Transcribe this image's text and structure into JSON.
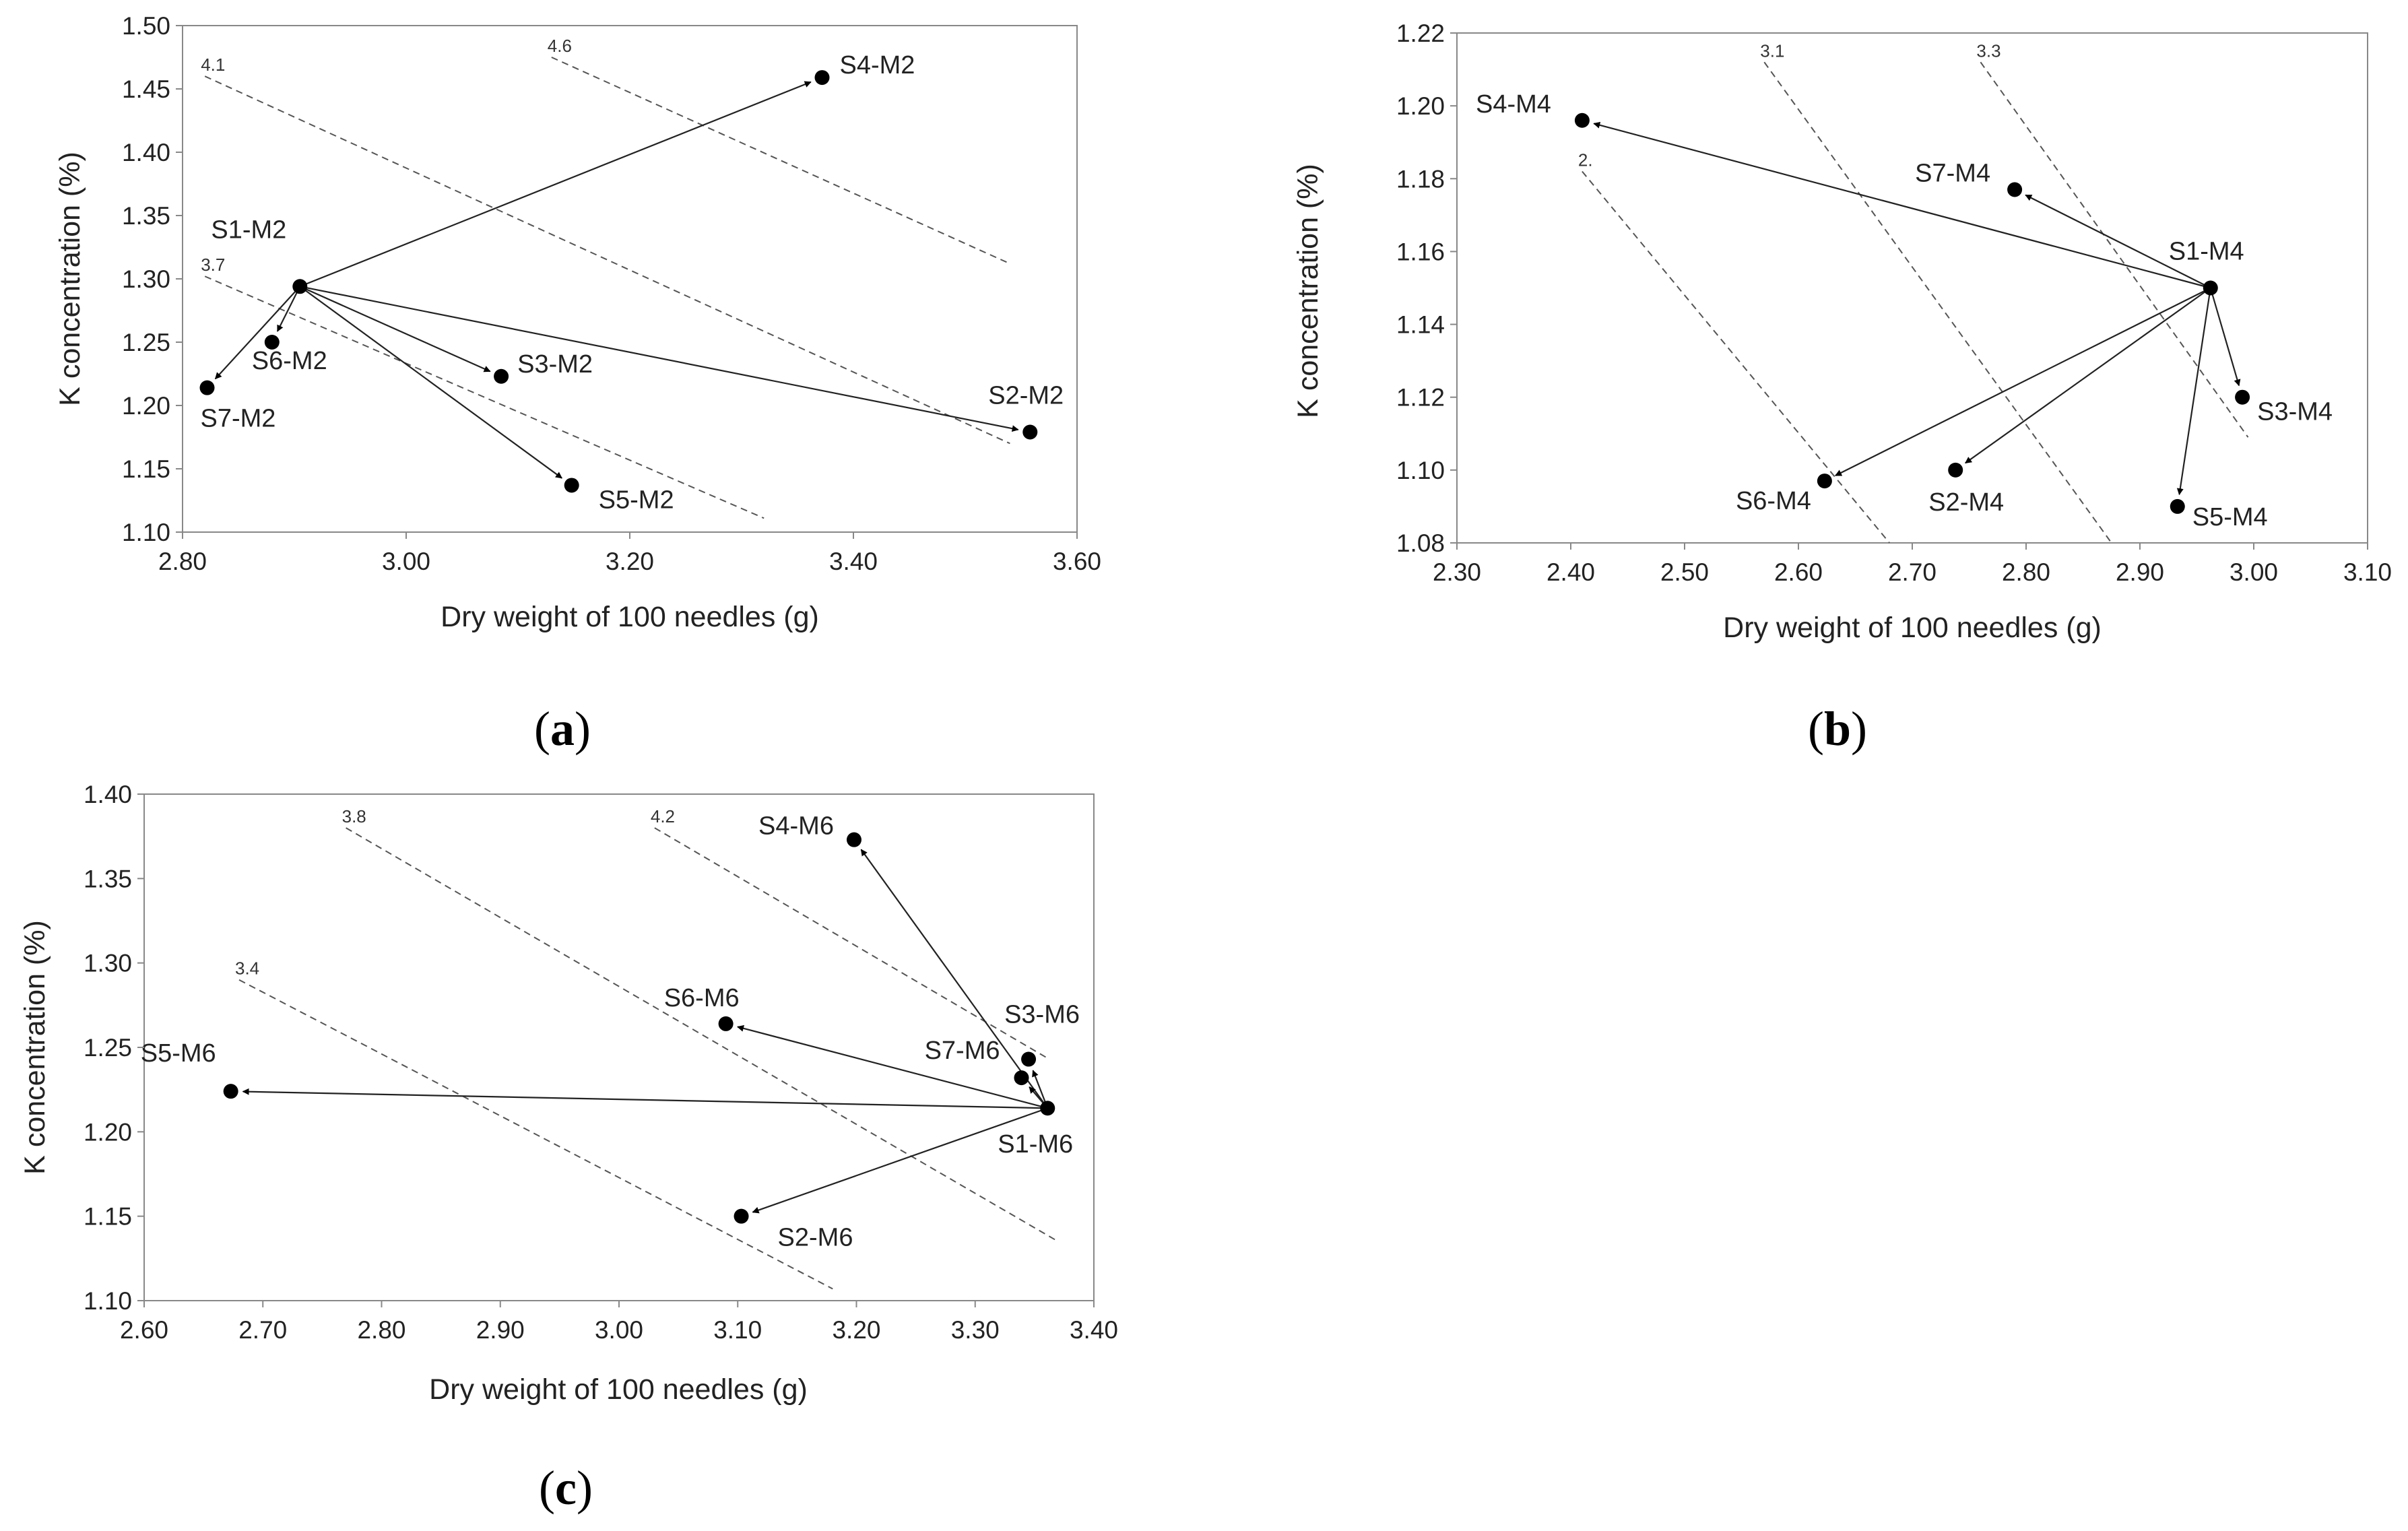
{
  "chart_data": [
    {
      "type": "scatter",
      "panel_label": "a",
      "xlabel": "Dry weight of 100 needles (g)",
      "ylabel": "K concentration (%)",
      "xlim": [
        2.8,
        3.6
      ],
      "ylim": [
        1.1,
        1.5
      ],
      "xticks": [
        "2.80",
        "3.00",
        "3.20",
        "3.40",
        "3.60"
      ],
      "yticks": [
        "1.10",
        "1.15",
        "1.20",
        "1.25",
        "1.30",
        "1.35",
        "1.40",
        "1.45",
        "1.50"
      ],
      "points": [
        {
          "label": "S1-M2",
          "x": 2.905,
          "y": 1.294
        },
        {
          "label": "S2-M2",
          "x": 3.558,
          "y": 1.179
        },
        {
          "label": "S3-M2",
          "x": 3.085,
          "y": 1.223
        },
        {
          "label": "S4-M2",
          "x": 3.372,
          "y": 1.459
        },
        {
          "label": "S5-M2",
          "x": 3.148,
          "y": 1.137
        },
        {
          "label": "S6-M2",
          "x": 2.88,
          "y": 1.25
        },
        {
          "label": "S7-M2",
          "x": 2.822,
          "y": 1.214
        }
      ],
      "arrows_from": "S1-M2",
      "isolines": [
        {
          "label": "4.1",
          "x": [
            2.82,
            3.54
          ],
          "y": [
            1.46,
            1.17
          ]
        },
        {
          "label": "4.6",
          "x": [
            3.13,
            3.54
          ],
          "y": [
            1.475,
            1.312
          ]
        },
        {
          "label": "3.7",
          "x": [
            2.82,
            3.32
          ],
          "y": [
            1.302,
            1.111
          ]
        }
      ]
    },
    {
      "type": "scatter",
      "panel_label": "b",
      "xlabel": "Dry weight of 100 needles  (g)",
      "ylabel": "K concentration (%)",
      "xlim": [
        2.3,
        3.1
      ],
      "ylim": [
        1.08,
        1.22
      ],
      "xticks": [
        "2.30",
        "2.40",
        "2.50",
        "2.60",
        "2.70",
        "2.80",
        "2.90",
        "3.00",
        "3.10"
      ],
      "yticks": [
        "1.08",
        "1.10",
        "1.12",
        "1.14",
        "1.16",
        "1.18",
        "1.20",
        "1.22"
      ],
      "points": [
        {
          "label": "S1-M4",
          "x": 2.962,
          "y": 1.15
        },
        {
          "label": "S2-M4",
          "x": 2.738,
          "y": 1.1
        },
        {
          "label": "S3-M4",
          "x": 2.99,
          "y": 1.12
        },
        {
          "label": "S4-M4",
          "x": 2.41,
          "y": 1.196
        },
        {
          "label": "S5-M4",
          "x": 2.933,
          "y": 1.09
        },
        {
          "label": "S6-M4",
          "x": 2.623,
          "y": 1.097
        },
        {
          "label": "S7-M4",
          "x": 2.79,
          "y": 1.177
        }
      ],
      "arrows_from": "S1-M4",
      "isolines": [
        {
          "label": "2.",
          "x": [
            2.41,
            2.68
          ],
          "y": [
            1.182,
            1.08
          ]
        },
        {
          "label": "3.1",
          "x": [
            2.57,
            2.875
          ],
          "y": [
            1.212,
            1.08
          ]
        },
        {
          "label": "3.3",
          "x": [
            2.76,
            2.995
          ],
          "y": [
            1.212,
            1.109
          ]
        }
      ]
    },
    {
      "type": "scatter",
      "panel_label": "c",
      "xlabel": "Dry weight of 100 needles (g)",
      "ylabel": "K concentration (%)",
      "xlim": [
        2.6,
        3.4
      ],
      "ylim": [
        1.1,
        1.4
      ],
      "xticks": [
        "2.60",
        "2.70",
        "2.80",
        "2.90",
        "3.00",
        "3.10",
        "3.20",
        "3.30",
        "3.40"
      ],
      "yticks": [
        "1.10",
        "1.15",
        "1.20",
        "1.25",
        "1.30",
        "1.35",
        "1.40"
      ],
      "points": [
        {
          "label": "S1-M6",
          "x": 3.361,
          "y": 1.214
        },
        {
          "label": "S2-M6",
          "x": 3.103,
          "y": 1.15
        },
        {
          "label": "S3-M6",
          "x": 3.345,
          "y": 1.243
        },
        {
          "label": "S4-M6",
          "x": 3.198,
          "y": 1.373
        },
        {
          "label": "S5-M6",
          "x": 2.673,
          "y": 1.224
        },
        {
          "label": "S6-M6",
          "x": 3.09,
          "y": 1.264
        },
        {
          "label": "S7-M6",
          "x": 3.339,
          "y": 1.232
        }
      ],
      "arrows_from": "S1-M6",
      "isolines": [
        {
          "label": "3.8",
          "x": [
            2.77,
            3.37
          ],
          "y": [
            1.38,
            1.135
          ]
        },
        {
          "label": "4.2",
          "x": [
            3.03,
            3.36
          ],
          "y": [
            1.38,
            1.244
          ]
        },
        {
          "label": "3.4",
          "x": [
            2.68,
            3.18
          ],
          "y": [
            1.29,
            1.107
          ]
        }
      ]
    }
  ]
}
